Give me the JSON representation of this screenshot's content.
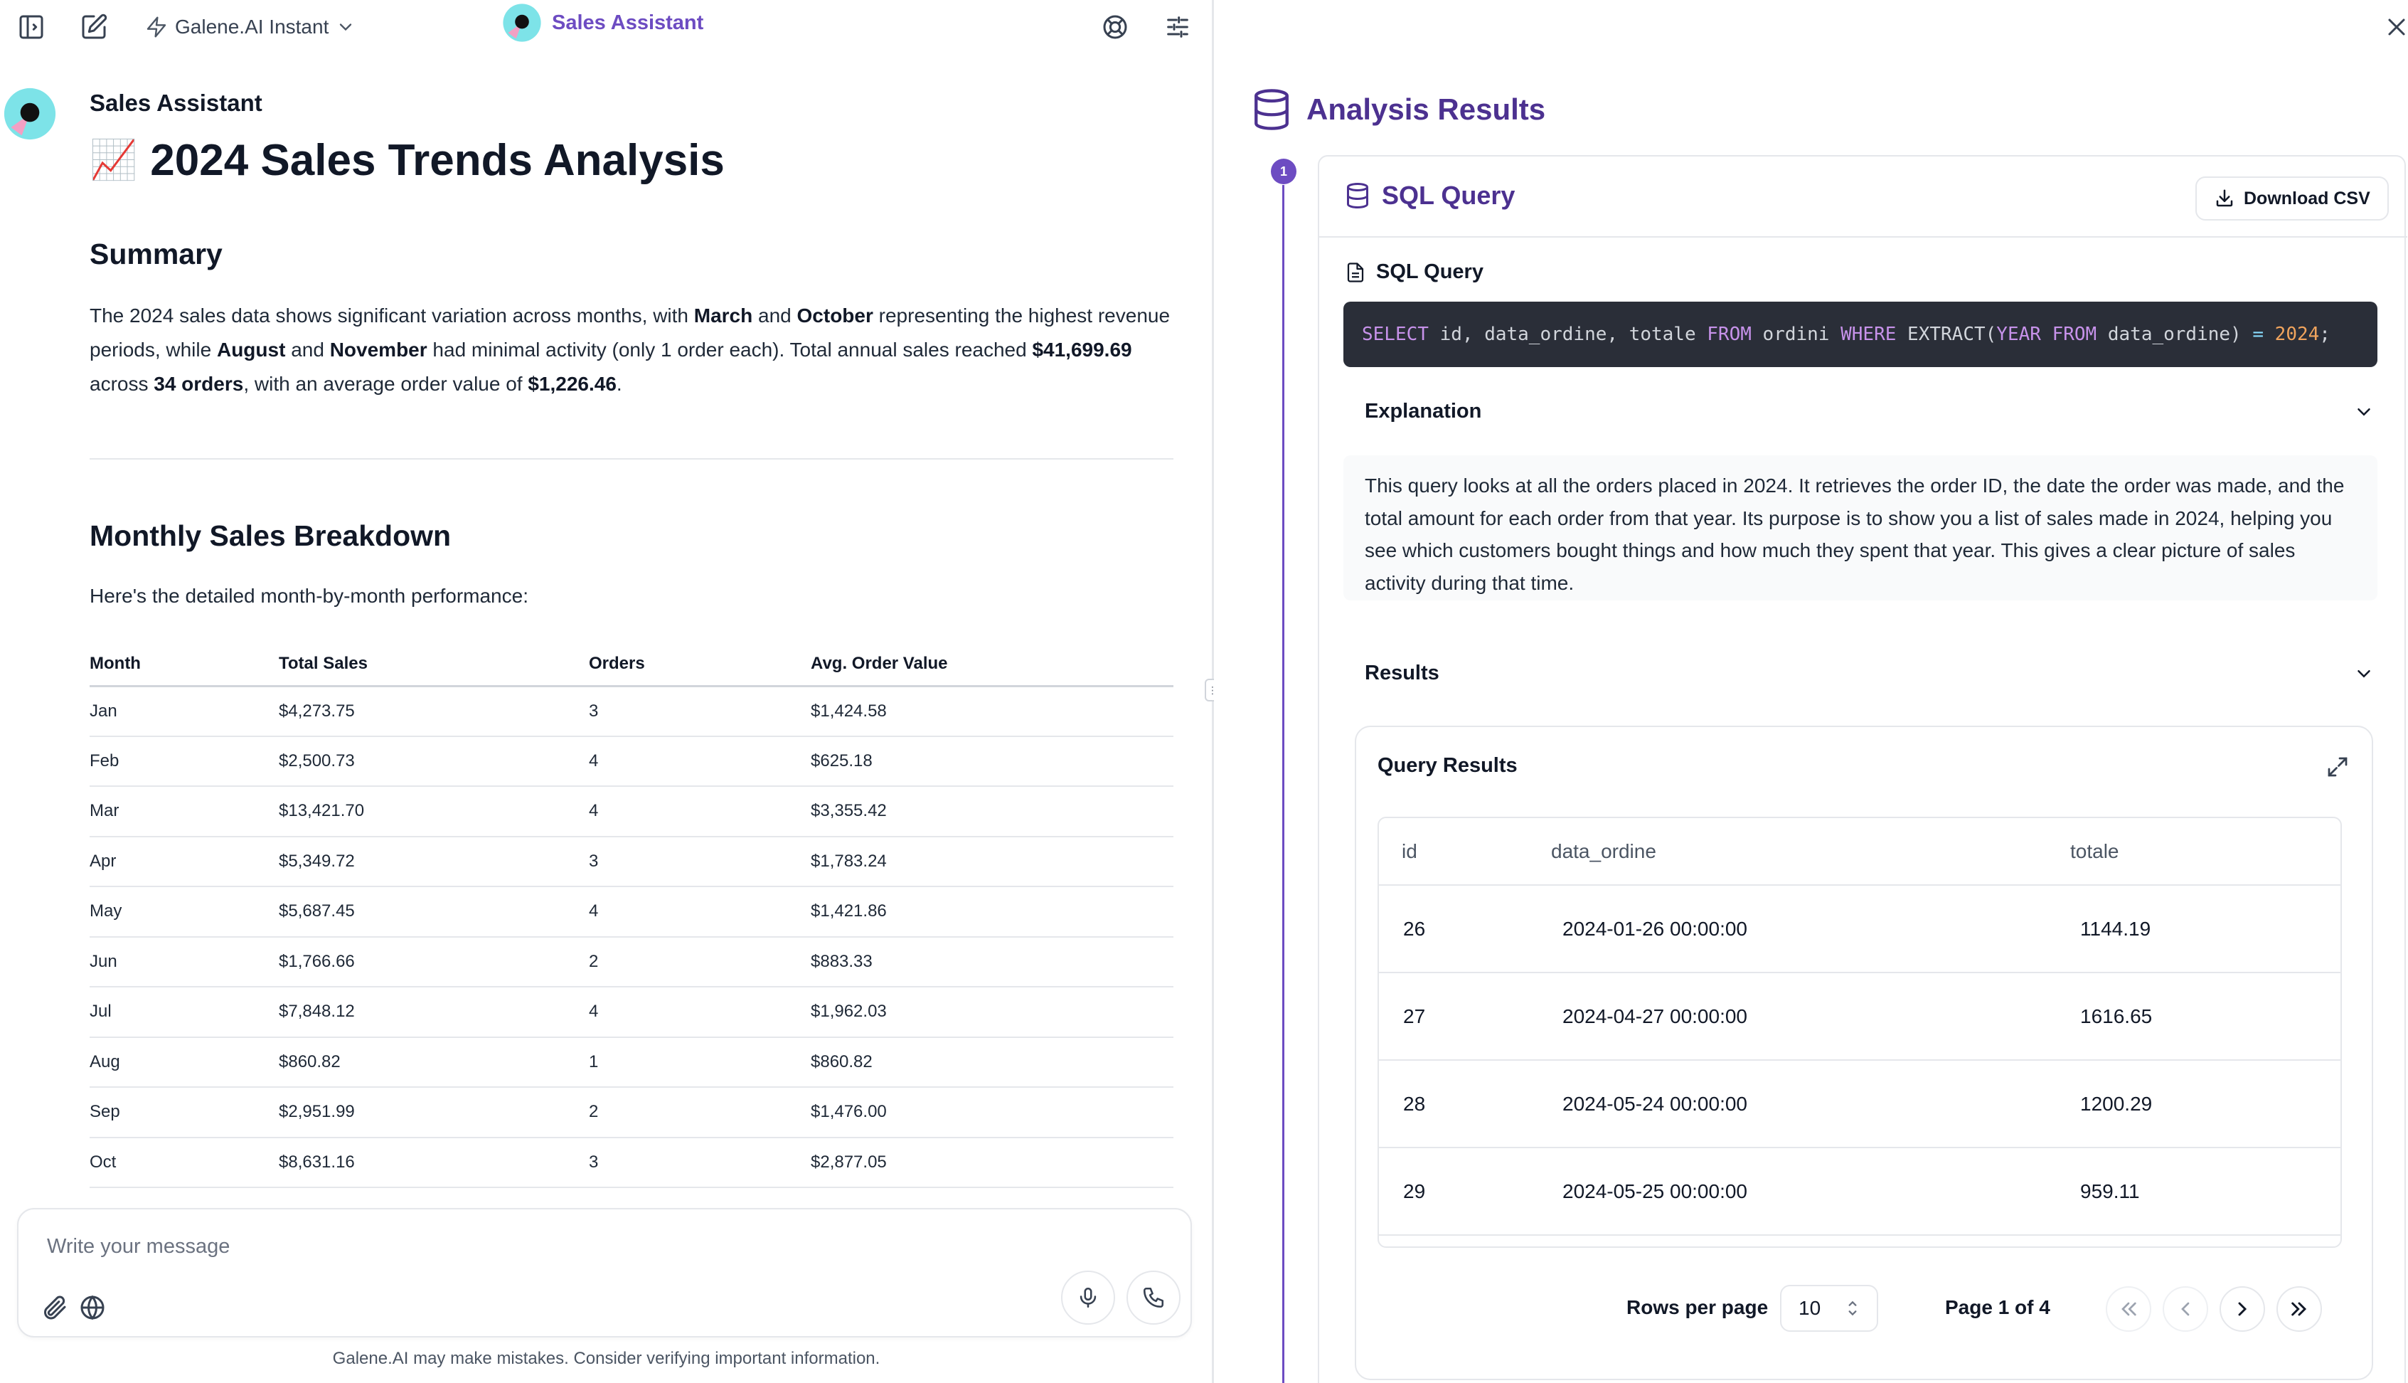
{
  "topbar": {
    "model_name": "Galene.AI Instant",
    "assistant_tab_label": "Sales Assistant"
  },
  "message": {
    "sender": "Sales Assistant",
    "title_emoji": "📈",
    "title": "2024 Sales Trends Analysis",
    "summary_heading": "Summary",
    "summary": {
      "t1": "The 2024 sales data shows significant variation across months, with ",
      "b1": "March",
      "t2": " and ",
      "b2": "October",
      "t3": " representing the highest revenue periods, while ",
      "b3": "August",
      "t4": " and ",
      "b4": "November",
      "t5": " had minimal activity (only 1 order each). Total annual sales reached ",
      "b5": "$41,699.69",
      "t6": " across ",
      "b6": "34 orders",
      "t7": ", with an average order value of ",
      "b7": "$1,226.46",
      "t8": "."
    },
    "breakdown_heading": "Monthly Sales Breakdown",
    "breakdown_intro": "Here's the detailed month-by-month performance:",
    "table": {
      "headers": [
        "Month",
        "Total Sales",
        "Orders",
        "Avg. Order Value"
      ],
      "rows": [
        [
          "Jan",
          "$4,273.75",
          "3",
          "$1,424.58"
        ],
        [
          "Feb",
          "$2,500.73",
          "4",
          "$625.18"
        ],
        [
          "Mar",
          "$13,421.70",
          "4",
          "$3,355.42"
        ],
        [
          "Apr",
          "$5,349.72",
          "3",
          "$1,783.24"
        ],
        [
          "May",
          "$5,687.45",
          "4",
          "$1,421.86"
        ],
        [
          "Jun",
          "$1,766.66",
          "2",
          "$883.33"
        ],
        [
          "Jul",
          "$7,848.12",
          "4",
          "$1,962.03"
        ],
        [
          "Aug",
          "$860.82",
          "1",
          "$860.82"
        ],
        [
          "Sep",
          "$2,951.99",
          "2",
          "$1,476.00"
        ],
        [
          "Oct",
          "$8,631.16",
          "3",
          "$2,877.05"
        ]
      ]
    }
  },
  "composer": {
    "placeholder": "Write your message",
    "value": ""
  },
  "disclaimer": "Galene.AI may make mistakes. Consider verifying important information.",
  "analysis": {
    "title": "Analysis Results",
    "step_number": "1",
    "card_title": "SQL Query",
    "download_label": "Download CSV",
    "sql_label": "SQL Query",
    "sql": {
      "k1": "SELECT",
      "t1": " id, data_ordine, totale ",
      "k2": "FROM",
      "t2": " ordini ",
      "k3": "WHERE",
      "t3": " EXTRACT(",
      "k4": "YEAR",
      "t4": " ",
      "k5": "FROM",
      "t5": " data_ordine) ",
      "op": "=",
      "t6": " ",
      "n1": "2024",
      "t7": ";"
    },
    "explanation_label": "Explanation",
    "explanation": "This query looks at all the orders placed in 2024. It retrieves the order ID, the date the order was made, and the total amount for each order from that year. Its purpose is to show you a list of sales made in 2024, helping you see which customers bought things and how much they spent that year. This gives a clear picture of sales activity during that time.",
    "results_label": "Results",
    "query_results_title": "Query Results",
    "results_table": {
      "headers": [
        "id",
        "data_ordine",
        "totale"
      ],
      "rows": [
        [
          "26",
          "2024-01-26 00:00:00",
          "1144.19"
        ],
        [
          "27",
          "2024-04-27 00:00:00",
          "1616.65"
        ],
        [
          "28",
          "2024-05-24 00:00:00",
          "1200.29"
        ],
        [
          "29",
          "2024-05-25 00:00:00",
          "959.11"
        ]
      ]
    },
    "pagination": {
      "rows_per_page_label": "Rows per page",
      "rows_per_page_value": "10",
      "page_info": "Page 1 of 4"
    }
  },
  "colors": {
    "accent": "#6d4cc2",
    "accent_dark": "#4c3190",
    "code_bg": "#2a2e38"
  }
}
